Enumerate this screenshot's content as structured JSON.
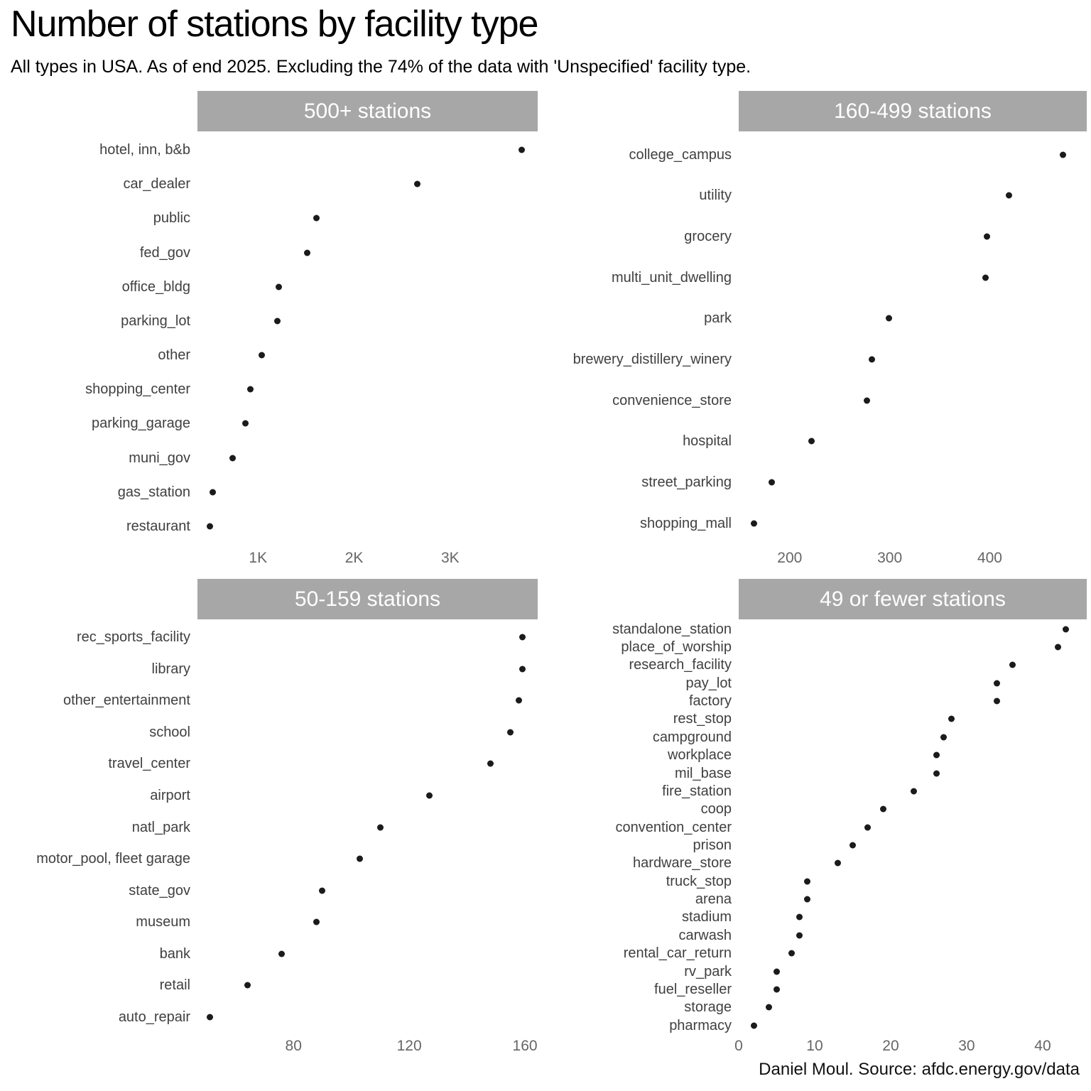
{
  "header": {
    "title": "Number of stations by facility type",
    "subtitle": "All types in USA. As of end 2025. Excluding the 74% of the data with 'Unspecified' facility type."
  },
  "caption": "Daniel Moul. Source: afdc.energy.gov/data",
  "colors": {
    "strip_bg": "#a7a7a7",
    "strip_text": "#ffffff",
    "dot": "#1b1b1b",
    "row_label": "#404040",
    "tick_label": "#666666"
  },
  "chart_data": [
    {
      "type": "scatter",
      "title": "500+ stations",
      "xlabel": "",
      "grid": false,
      "xlim": [
        370,
        3910
      ],
      "ticks": [
        {
          "value": 1000,
          "label": "1K"
        },
        {
          "value": 2000,
          "label": "2K"
        },
        {
          "value": 3000,
          "label": "3K"
        }
      ],
      "rows": [
        {
          "label": "hotel, inn, b&b",
          "value": 3745
        },
        {
          "label": "car_dealer",
          "value": 2660
        },
        {
          "label": "public",
          "value": 1605
        },
        {
          "label": "fed_gov",
          "value": 1510
        },
        {
          "label": "office_bldg",
          "value": 1215
        },
        {
          "label": "parking_lot",
          "value": 1200
        },
        {
          "label": "other",
          "value": 1040
        },
        {
          "label": "shopping_center",
          "value": 920
        },
        {
          "label": "parking_garage",
          "value": 870
        },
        {
          "label": "muni_gov",
          "value": 735
        },
        {
          "label": "gas_station",
          "value": 530
        },
        {
          "label": "restaurant",
          "value": 500
        }
      ]
    },
    {
      "type": "scatter",
      "title": "160-499 stations",
      "xlabel": "",
      "grid": false,
      "xlim": [
        149,
        497
      ],
      "ticks": [
        {
          "value": 200,
          "label": "200"
        },
        {
          "value": 300,
          "label": "300"
        },
        {
          "value": 400,
          "label": "400"
        }
      ],
      "rows": [
        {
          "label": "college_campus",
          "value": 473
        },
        {
          "label": "utility",
          "value": 419
        },
        {
          "label": "grocery",
          "value": 397
        },
        {
          "label": "multi_unit_dwelling",
          "value": 396
        },
        {
          "label": "park",
          "value": 299
        },
        {
          "label": "brewery_distillery_winery",
          "value": 282
        },
        {
          "label": "convenience_store",
          "value": 277
        },
        {
          "label": "hospital",
          "value": 222
        },
        {
          "label": "street_parking",
          "value": 182
        },
        {
          "label": "shopping_mall",
          "value": 164
        }
      ]
    },
    {
      "type": "scatter",
      "title": "50-159 stations",
      "xlabel": "",
      "grid": false,
      "xlim": [
        46.8,
        164.4
      ],
      "ticks": [
        {
          "value": 80,
          "label": "80"
        },
        {
          "value": 120,
          "label": "120"
        },
        {
          "value": 160,
          "label": "160"
        }
      ],
      "rows": [
        {
          "label": "rec_sports_facility",
          "value": 159
        },
        {
          "label": "library",
          "value": 159
        },
        {
          "label": "other_entertainment",
          "value": 158
        },
        {
          "label": "school",
          "value": 155
        },
        {
          "label": "travel_center",
          "value": 148
        },
        {
          "label": "airport",
          "value": 127
        },
        {
          "label": "natl_park",
          "value": 110
        },
        {
          "label": "motor_pool, fleet garage",
          "value": 103
        },
        {
          "label": "state_gov",
          "value": 90
        },
        {
          "label": "museum",
          "value": 88
        },
        {
          "label": "bank",
          "value": 76
        },
        {
          "label": "retail",
          "value": 64
        },
        {
          "label": "auto_repair",
          "value": 51
        }
      ]
    },
    {
      "type": "scatter",
      "title": "49 or fewer stations",
      "xlabel": "",
      "grid": false,
      "xlim": [
        0,
        45.8
      ],
      "ticks": [
        {
          "value": 0,
          "label": "0"
        },
        {
          "value": 10,
          "label": "10"
        },
        {
          "value": 20,
          "label": "20"
        },
        {
          "value": 30,
          "label": "30"
        },
        {
          "value": 40,
          "label": "40"
        }
      ],
      "rows": [
        {
          "label": "standalone_station",
          "value": 43
        },
        {
          "label": "place_of_worship",
          "value": 42
        },
        {
          "label": "research_facility",
          "value": 36
        },
        {
          "label": "pay_lot",
          "value": 34
        },
        {
          "label": "factory",
          "value": 34
        },
        {
          "label": "rest_stop",
          "value": 28
        },
        {
          "label": "campground",
          "value": 27
        },
        {
          "label": "workplace",
          "value": 26
        },
        {
          "label": "mil_base",
          "value": 26
        },
        {
          "label": "fire_station",
          "value": 23
        },
        {
          "label": "coop",
          "value": 19
        },
        {
          "label": "convention_center",
          "value": 17
        },
        {
          "label": "prison",
          "value": 15
        },
        {
          "label": "hardware_store",
          "value": 13
        },
        {
          "label": "truck_stop",
          "value": 9
        },
        {
          "label": "arena",
          "value": 9
        },
        {
          "label": "stadium",
          "value": 8
        },
        {
          "label": "carwash",
          "value": 8
        },
        {
          "label": "rental_car_return",
          "value": 7
        },
        {
          "label": "rv_park",
          "value": 5
        },
        {
          "label": "fuel_reseller",
          "value": 5
        },
        {
          "label": "storage",
          "value": 4
        },
        {
          "label": "pharmacy",
          "value": 2
        }
      ]
    }
  ]
}
